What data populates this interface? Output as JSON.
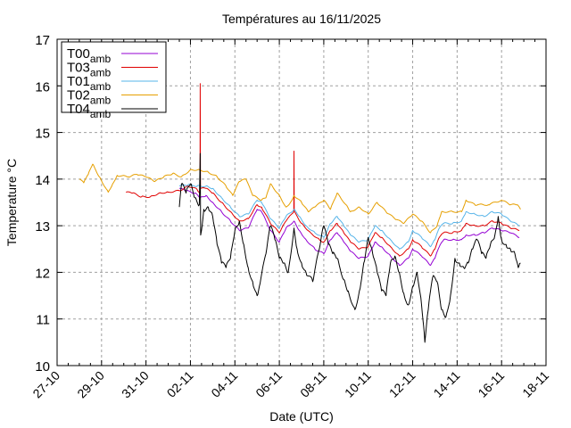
{
  "chart_data": {
    "type": "line",
    "title": "Températures  au 16/11/2025",
    "xlabel": "Date (UTC)",
    "ylabel": "Temperature °C",
    "xlim_days": [
      0,
      22
    ],
    "x_origin_date": "27-10",
    "ylim": [
      10,
      17
    ],
    "grid": true,
    "legend_position": "top-left",
    "yticks": [
      10,
      11,
      12,
      13,
      14,
      15,
      16,
      17
    ],
    "xticks": [
      {
        "day": 0,
        "label": "27-10"
      },
      {
        "day": 2,
        "label": "29-10"
      },
      {
        "day": 4,
        "label": "31-10"
      },
      {
        "day": 6,
        "label": "02-11"
      },
      {
        "day": 8,
        "label": "04-11"
      },
      {
        "day": 10,
        "label": "06-11"
      },
      {
        "day": 12,
        "label": "08-11"
      },
      {
        "day": 14,
        "label": "10-11"
      },
      {
        "day": 16,
        "label": "12-11"
      },
      {
        "day": 18,
        "label": "14-11"
      },
      {
        "day": 20,
        "label": "16-11"
      },
      {
        "day": 22,
        "label": "18-11"
      }
    ],
    "series": [
      {
        "name": "T00",
        "subscript": "amb",
        "color": "#9400d3",
        "points": [
          [
            5.5,
            13.8
          ],
          [
            5.8,
            13.75
          ],
          [
            6.2,
            13.7
          ],
          [
            6.44,
            13.6
          ],
          [
            6.7,
            13.65
          ],
          [
            7.0,
            13.5
          ],
          [
            7.4,
            13.3
          ],
          [
            7.8,
            13.1
          ],
          [
            8.2,
            12.9
          ],
          [
            8.6,
            12.95
          ],
          [
            9.0,
            13.35
          ],
          [
            9.2,
            13.3
          ],
          [
            9.6,
            12.9
          ],
          [
            10.0,
            12.65
          ],
          [
            10.3,
            12.95
          ],
          [
            10.66,
            13.1
          ],
          [
            10.9,
            12.9
          ],
          [
            11.2,
            12.7
          ],
          [
            11.6,
            12.5
          ],
          [
            12.0,
            12.4
          ],
          [
            12.3,
            12.7
          ],
          [
            12.6,
            12.85
          ],
          [
            12.9,
            12.65
          ],
          [
            13.2,
            12.45
          ],
          [
            13.6,
            12.3
          ],
          [
            14.0,
            12.35
          ],
          [
            14.3,
            12.65
          ],
          [
            14.6,
            12.55
          ],
          [
            15.0,
            12.35
          ],
          [
            15.4,
            12.15
          ],
          [
            15.8,
            12.3
          ],
          [
            16.0,
            12.5
          ],
          [
            16.4,
            12.35
          ],
          [
            16.8,
            12.15
          ],
          [
            17.0,
            12.3
          ],
          [
            17.2,
            12.55
          ],
          [
            17.4,
            12.7
          ],
          [
            17.8,
            12.7
          ],
          [
            18.2,
            12.7
          ],
          [
            18.4,
            12.8
          ],
          [
            18.8,
            12.8
          ],
          [
            19.2,
            12.85
          ],
          [
            19.6,
            12.95
          ],
          [
            20.0,
            12.9
          ],
          [
            20.4,
            12.85
          ],
          [
            20.8,
            12.75
          ]
        ]
      },
      {
        "name": "T03",
        "subscript": "amb",
        "color": "#e00000",
        "points": [
          [
            3.1,
            13.72
          ],
          [
            3.4,
            13.7
          ],
          [
            3.8,
            13.62
          ],
          [
            4.2,
            13.62
          ],
          [
            4.6,
            13.7
          ],
          [
            5.0,
            13.72
          ],
          [
            5.5,
            13.75
          ],
          [
            5.9,
            13.85
          ],
          [
            6.3,
            13.78
          ],
          [
            6.43,
            13.7
          ],
          [
            6.44,
            16.05
          ],
          [
            6.45,
            13.8
          ],
          [
            6.7,
            13.8
          ],
          [
            7.0,
            13.7
          ],
          [
            7.4,
            13.5
          ],
          [
            7.8,
            13.3
          ],
          [
            8.2,
            13.1
          ],
          [
            8.6,
            13.15
          ],
          [
            9.0,
            13.45
          ],
          [
            9.2,
            13.4
          ],
          [
            9.6,
            13.05
          ],
          [
            10.0,
            12.85
          ],
          [
            10.3,
            13.1
          ],
          [
            10.65,
            13.3
          ],
          [
            10.66,
            14.6
          ],
          [
            10.67,
            13.3
          ],
          [
            11.0,
            13.05
          ],
          [
            11.4,
            12.85
          ],
          [
            11.8,
            12.7
          ],
          [
            12.0,
            12.65
          ],
          [
            12.3,
            12.9
          ],
          [
            12.6,
            13.05
          ],
          [
            12.9,
            12.85
          ],
          [
            13.2,
            12.65
          ],
          [
            13.6,
            12.5
          ],
          [
            14.0,
            12.55
          ],
          [
            14.3,
            12.85
          ],
          [
            14.6,
            12.75
          ],
          [
            15.0,
            12.55
          ],
          [
            15.4,
            12.35
          ],
          [
            15.8,
            12.5
          ],
          [
            16.0,
            12.7
          ],
          [
            16.4,
            12.55
          ],
          [
            16.8,
            12.35
          ],
          [
            17.0,
            12.5
          ],
          [
            17.2,
            12.75
          ],
          [
            17.4,
            12.85
          ],
          [
            17.8,
            12.85
          ],
          [
            18.2,
            12.9
          ],
          [
            18.4,
            13.05
          ],
          [
            18.8,
            13.0
          ],
          [
            19.2,
            13.0
          ],
          [
            19.6,
            13.1
          ],
          [
            20.0,
            13.05
          ],
          [
            20.4,
            12.95
          ],
          [
            20.8,
            12.9
          ]
        ]
      },
      {
        "name": "T01",
        "subscript": "amb",
        "color": "#56b4e9",
        "points": [
          [
            5.5,
            13.85
          ],
          [
            5.9,
            13.88
          ],
          [
            6.3,
            13.85
          ],
          [
            6.7,
            13.85
          ],
          [
            7.0,
            13.8
          ],
          [
            7.4,
            13.6
          ],
          [
            7.8,
            13.4
          ],
          [
            8.2,
            13.2
          ],
          [
            8.6,
            13.25
          ],
          [
            9.0,
            13.55
          ],
          [
            9.2,
            13.5
          ],
          [
            9.6,
            13.15
          ],
          [
            10.0,
            12.95
          ],
          [
            10.3,
            13.2
          ],
          [
            10.66,
            13.35
          ],
          [
            10.9,
            13.2
          ],
          [
            11.2,
            13.0
          ],
          [
            11.6,
            12.85
          ],
          [
            12.0,
            12.75
          ],
          [
            12.3,
            13.05
          ],
          [
            12.6,
            13.2
          ],
          [
            12.9,
            13.0
          ],
          [
            13.2,
            12.8
          ],
          [
            13.6,
            12.65
          ],
          [
            14.0,
            12.7
          ],
          [
            14.3,
            13.0
          ],
          [
            14.6,
            12.9
          ],
          [
            15.0,
            12.7
          ],
          [
            15.4,
            12.5
          ],
          [
            15.8,
            12.65
          ],
          [
            16.0,
            12.9
          ],
          [
            16.4,
            12.75
          ],
          [
            16.8,
            12.55
          ],
          [
            17.0,
            12.7
          ],
          [
            17.2,
            12.95
          ],
          [
            17.4,
            13.05
          ],
          [
            17.8,
            13.05
          ],
          [
            18.2,
            13.1
          ],
          [
            18.4,
            13.3
          ],
          [
            18.8,
            13.25
          ],
          [
            19.2,
            13.2
          ],
          [
            19.6,
            13.3
          ],
          [
            20.0,
            13.25
          ],
          [
            20.4,
            13.1
          ],
          [
            20.8,
            13.0
          ]
        ]
      },
      {
        "name": "T02",
        "subscript": "amb",
        "color": "#e69f00",
        "points": [
          [
            1.0,
            14.0
          ],
          [
            1.2,
            13.92
          ],
          [
            1.4,
            14.1
          ],
          [
            1.6,
            14.32
          ],
          [
            1.9,
            14.05
          ],
          [
            2.3,
            13.72
          ],
          [
            2.5,
            13.9
          ],
          [
            2.7,
            14.08
          ],
          [
            3.2,
            14.05
          ],
          [
            3.6,
            14.1
          ],
          [
            4.0,
            14.05
          ],
          [
            4.4,
            13.95
          ],
          [
            4.8,
            14.05
          ],
          [
            5.2,
            14.12
          ],
          [
            5.6,
            14.05
          ],
          [
            6.0,
            14.2
          ],
          [
            6.4,
            14.2
          ],
          [
            6.8,
            14.15
          ],
          [
            7.2,
            14.05
          ],
          [
            7.6,
            13.85
          ],
          [
            7.9,
            13.65
          ],
          [
            8.2,
            13.95
          ],
          [
            8.5,
            14.0
          ],
          [
            8.8,
            13.65
          ],
          [
            9.2,
            13.55
          ],
          [
            9.4,
            13.6
          ],
          [
            9.6,
            13.9
          ],
          [
            10.0,
            13.65
          ],
          [
            10.3,
            13.4
          ],
          [
            10.5,
            13.5
          ],
          [
            10.66,
            13.65
          ],
          [
            11.0,
            13.5
          ],
          [
            11.3,
            13.3
          ],
          [
            11.6,
            13.4
          ],
          [
            12.0,
            13.55
          ],
          [
            12.3,
            13.35
          ],
          [
            12.6,
            13.7
          ],
          [
            13.0,
            13.45
          ],
          [
            13.2,
            13.3
          ],
          [
            13.6,
            13.4
          ],
          [
            14.0,
            13.25
          ],
          [
            14.4,
            13.5
          ],
          [
            14.8,
            13.3
          ],
          [
            15.2,
            13.15
          ],
          [
            15.6,
            13.05
          ],
          [
            16.0,
            13.25
          ],
          [
            16.4,
            13.1
          ],
          [
            16.8,
            12.85
          ],
          [
            17.1,
            13.0
          ],
          [
            17.3,
            13.3
          ],
          [
            17.8,
            13.3
          ],
          [
            18.2,
            13.3
          ],
          [
            18.4,
            13.55
          ],
          [
            18.8,
            13.45
          ],
          [
            19.4,
            13.45
          ],
          [
            20.0,
            13.55
          ],
          [
            20.4,
            13.45
          ],
          [
            20.7,
            13.45
          ],
          [
            20.85,
            13.35
          ]
        ]
      },
      {
        "name": "T04",
        "subscript": "amb",
        "color": "#000000",
        "points": [
          [
            5.5,
            13.4
          ],
          [
            5.6,
            13.9
          ],
          [
            5.8,
            13.7
          ],
          [
            6.0,
            13.9
          ],
          [
            6.2,
            13.6
          ],
          [
            6.4,
            13.45
          ],
          [
            6.44,
            14.55
          ],
          [
            6.46,
            12.8
          ],
          [
            6.6,
            13.35
          ],
          [
            6.8,
            13.4
          ],
          [
            7.0,
            13.2
          ],
          [
            7.2,
            12.6
          ],
          [
            7.4,
            12.2
          ],
          [
            7.6,
            12.1
          ],
          [
            7.8,
            12.3
          ],
          [
            8.0,
            12.9
          ],
          [
            8.2,
            13.1
          ],
          [
            8.4,
            12.6
          ],
          [
            8.6,
            12.1
          ],
          [
            8.8,
            11.8
          ],
          [
            9.0,
            11.5
          ],
          [
            9.1,
            11.7
          ],
          [
            9.4,
            12.4
          ],
          [
            9.6,
            13.0
          ],
          [
            9.8,
            12.7
          ],
          [
            10.0,
            12.3
          ],
          [
            10.2,
            12.2
          ],
          [
            10.4,
            12.0
          ],
          [
            10.66,
            12.95
          ],
          [
            10.8,
            12.5
          ],
          [
            11.0,
            12.2
          ],
          [
            11.2,
            12.0
          ],
          [
            11.5,
            11.8
          ],
          [
            11.8,
            12.5
          ],
          [
            12.0,
            13.0
          ],
          [
            12.2,
            12.6
          ],
          [
            12.4,
            12.4
          ],
          [
            12.6,
            12.3
          ],
          [
            12.9,
            11.85
          ],
          [
            13.1,
            11.6
          ],
          [
            13.4,
            11.2
          ],
          [
            13.6,
            11.6
          ],
          [
            13.8,
            12.2
          ],
          [
            14.0,
            12.75
          ],
          [
            14.2,
            12.4
          ],
          [
            14.4,
            12.0
          ],
          [
            14.6,
            11.6
          ],
          [
            14.8,
            11.5
          ],
          [
            15.0,
            12.2
          ],
          [
            15.2,
            12.35
          ],
          [
            15.4,
            12.0
          ],
          [
            15.6,
            11.55
          ],
          [
            15.8,
            11.3
          ],
          [
            16.0,
            11.7
          ],
          [
            16.2,
            12.0
          ],
          [
            16.4,
            11.3
          ],
          [
            16.55,
            10.5
          ],
          [
            16.7,
            11.2
          ],
          [
            16.9,
            11.9
          ],
          [
            17.1,
            11.8
          ],
          [
            17.3,
            11.2
          ],
          [
            17.5,
            11.05
          ],
          [
            17.7,
            11.5
          ],
          [
            17.9,
            12.3
          ],
          [
            18.1,
            12.2
          ],
          [
            18.3,
            12.1
          ],
          [
            18.5,
            12.2
          ],
          [
            18.7,
            12.5
          ],
          [
            18.9,
            12.7
          ],
          [
            19.1,
            12.4
          ],
          [
            19.3,
            12.3
          ],
          [
            19.5,
            12.6
          ],
          [
            19.7,
            12.8
          ],
          [
            19.85,
            13.2
          ],
          [
            20.0,
            12.7
          ],
          [
            20.2,
            12.6
          ],
          [
            20.4,
            12.5
          ],
          [
            20.6,
            12.4
          ],
          [
            20.75,
            12.1
          ],
          [
            20.85,
            12.2
          ]
        ]
      }
    ]
  }
}
